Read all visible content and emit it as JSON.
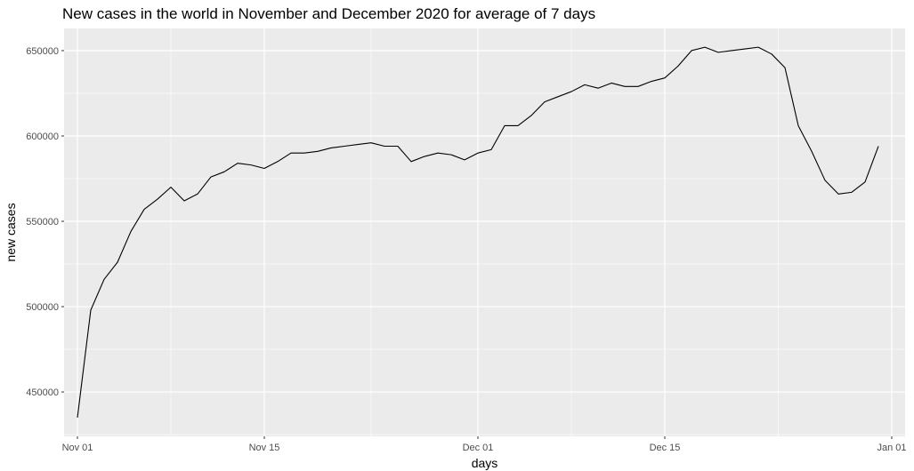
{
  "chart_data": {
    "type": "line",
    "title": "New cases in the world in November and December 2020 for average of 7 days",
    "xlabel": "days",
    "ylabel": "new cases",
    "x_ticks": [
      "Nov 01",
      "Nov 15",
      "Dec 01",
      "Dec 15",
      "Jan 01"
    ],
    "y_ticks": [
      "450000",
      "500000",
      "550000",
      "600000",
      "650000"
    ],
    "xlim": [
      "2020-10-31",
      "2021-01-02"
    ],
    "ylim": [
      424000,
      663000
    ],
    "grid": true,
    "line_color": "#000000",
    "panel_color": "#ebebeb",
    "grid_color": "#ffffff",
    "series": [
      {
        "x": [
          "2020-11-01",
          "2020-11-02",
          "2020-11-03",
          "2020-11-04",
          "2020-11-05",
          "2020-11-06",
          "2020-11-07",
          "2020-11-08",
          "2020-11-09",
          "2020-11-10",
          "2020-11-11",
          "2020-11-12",
          "2020-11-13",
          "2020-11-14",
          "2020-11-15",
          "2020-11-16",
          "2020-11-17",
          "2020-11-18",
          "2020-11-19",
          "2020-11-20",
          "2020-11-21",
          "2020-11-22",
          "2020-11-23",
          "2020-11-24",
          "2020-11-25",
          "2020-11-26",
          "2020-11-27",
          "2020-11-28",
          "2020-11-29",
          "2020-11-30",
          "2020-12-01",
          "2020-12-02",
          "2020-12-03",
          "2020-12-04",
          "2020-12-05",
          "2020-12-06",
          "2020-12-07",
          "2020-12-08",
          "2020-12-09",
          "2020-12-10",
          "2020-12-11",
          "2020-12-12",
          "2020-12-13",
          "2020-12-14",
          "2020-12-15",
          "2020-12-16",
          "2020-12-17",
          "2020-12-18",
          "2020-12-19",
          "2020-12-20",
          "2020-12-21",
          "2020-12-22",
          "2020-12-23",
          "2020-12-24",
          "2020-12-25",
          "2020-12-26",
          "2020-12-27",
          "2020-12-28",
          "2020-12-29",
          "2020-12-30",
          "2020-12-31"
        ],
        "values": [
          435000,
          498000,
          516000,
          526000,
          544000,
          557000,
          563000,
          570000,
          562000,
          566000,
          576000,
          579000,
          584000,
          583000,
          581000,
          585000,
          590000,
          590000,
          591000,
          593000,
          594000,
          595000,
          596000,
          594000,
          594000,
          585000,
          588000,
          590000,
          589000,
          586000,
          590000,
          592000,
          606000,
          606000,
          612000,
          620000,
          623000,
          626000,
          630000,
          628000,
          631000,
          629000,
          629000,
          632000,
          634000,
          641000,
          650000,
          652000,
          649000,
          650000,
          651000,
          652000,
          648000,
          640000,
          606000,
          591000,
          574000,
          566000,
          567000,
          573000,
          594000
        ]
      }
    ]
  }
}
